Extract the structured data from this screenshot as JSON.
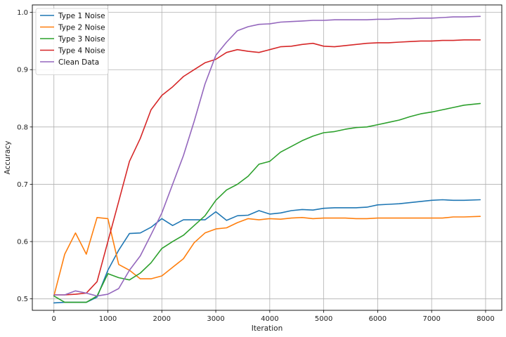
{
  "chart_data": {
    "type": "line",
    "xlabel": "Iteration",
    "ylabel": "Accuracy",
    "xlim": [
      -400,
      8300
    ],
    "ylim": [
      0.48,
      1.013
    ],
    "xticks": [
      0,
      1000,
      2000,
      3000,
      4000,
      5000,
      6000,
      7000,
      8000
    ],
    "yticks": [
      0.5,
      0.6,
      0.7,
      0.8,
      0.9,
      1.0
    ],
    "xtick_labels": [
      "0",
      "1000",
      "2000",
      "3000",
      "4000",
      "5000",
      "6000",
      "7000",
      "8000"
    ],
    "ytick_labels": [
      "0.5",
      "0.6",
      "0.7",
      "0.8",
      "0.9",
      "1.0"
    ],
    "grid": true,
    "legend_position": "top-left",
    "x": [
      0,
      200,
      400,
      600,
      800,
      1000,
      1200,
      1400,
      1600,
      1800,
      2000,
      2200,
      2400,
      2600,
      2800,
      3000,
      3200,
      3400,
      3600,
      3800,
      4000,
      4200,
      4400,
      4600,
      4800,
      5000,
      5200,
      5400,
      5600,
      5800,
      6000,
      6200,
      6400,
      6600,
      6800,
      7000,
      7200,
      7400,
      7600,
      7900
    ],
    "series": [
      {
        "name": "Type 1 Noise",
        "color": "#1f77b4",
        "values": [
          0.493,
          0.494,
          0.494,
          0.494,
          0.503,
          0.55,
          0.585,
          0.614,
          0.615,
          0.625,
          0.64,
          0.628,
          0.638,
          0.638,
          0.638,
          0.652,
          0.637,
          0.645,
          0.646,
          0.654,
          0.648,
          0.65,
          0.654,
          0.656,
          0.655,
          0.658,
          0.659,
          0.659,
          0.659,
          0.66,
          0.664,
          0.665,
          0.666,
          0.668,
          0.67,
          0.672,
          0.673,
          0.672,
          0.672,
          0.673
        ]
      },
      {
        "name": "Type 2 Noise",
        "color": "#ff7f0e",
        "values": [
          0.505,
          0.578,
          0.615,
          0.578,
          0.642,
          0.64,
          0.56,
          0.55,
          0.535,
          0.535,
          0.54,
          0.555,
          0.57,
          0.598,
          0.615,
          0.622,
          0.624,
          0.633,
          0.64,
          0.638,
          0.64,
          0.639,
          0.641,
          0.642,
          0.64,
          0.641,
          0.641,
          0.641,
          0.64,
          0.64,
          0.641,
          0.641,
          0.641,
          0.641,
          0.641,
          0.641,
          0.641,
          0.643,
          0.643,
          0.644
        ]
      },
      {
        "name": "Type 3 Noise",
        "color": "#2ca02c",
        "values": [
          0.505,
          0.494,
          0.494,
          0.494,
          0.505,
          0.544,
          0.537,
          0.533,
          0.545,
          0.563,
          0.588,
          0.6,
          0.611,
          0.628,
          0.645,
          0.672,
          0.69,
          0.7,
          0.714,
          0.735,
          0.74,
          0.756,
          0.766,
          0.776,
          0.784,
          0.79,
          0.792,
          0.796,
          0.799,
          0.8,
          0.804,
          0.808,
          0.812,
          0.818,
          0.823,
          0.826,
          0.83,
          0.834,
          0.838,
          0.841
        ]
      },
      {
        "name": "Type 4 Noise",
        "color": "#d62728",
        "values": [
          0.507,
          0.507,
          0.508,
          0.51,
          0.53,
          0.6,
          0.67,
          0.74,
          0.78,
          0.83,
          0.855,
          0.87,
          0.888,
          0.9,
          0.912,
          0.918,
          0.93,
          0.935,
          0.932,
          0.93,
          0.935,
          0.94,
          0.941,
          0.944,
          0.946,
          0.941,
          0.94,
          0.942,
          0.944,
          0.946,
          0.947,
          0.947,
          0.948,
          0.949,
          0.95,
          0.95,
          0.951,
          0.951,
          0.952,
          0.952
        ]
      },
      {
        "name": "Clean Data",
        "color": "#9467bd",
        "values": [
          0.507,
          0.507,
          0.514,
          0.51,
          0.505,
          0.508,
          0.518,
          0.55,
          0.575,
          0.612,
          0.65,
          0.7,
          0.75,
          0.81,
          0.875,
          0.925,
          0.948,
          0.968,
          0.975,
          0.979,
          0.98,
          0.983,
          0.984,
          0.985,
          0.986,
          0.986,
          0.987,
          0.987,
          0.987,
          0.987,
          0.988,
          0.988,
          0.989,
          0.989,
          0.99,
          0.99,
          0.991,
          0.992,
          0.992,
          0.993
        ]
      }
    ]
  }
}
